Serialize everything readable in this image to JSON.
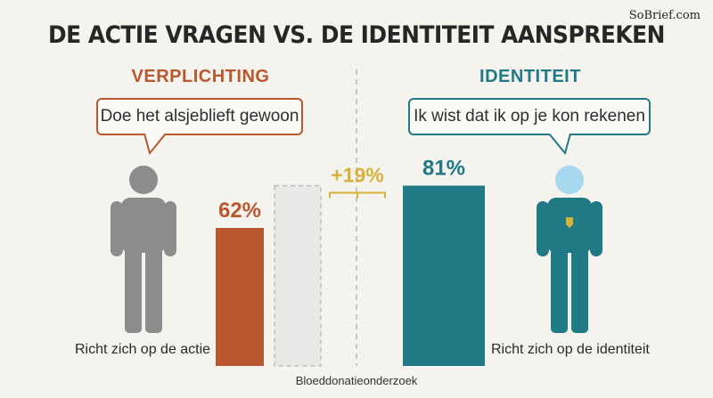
{
  "watermark": "SoBrief.com",
  "title": "DE ACTIE VRAGEN VS. DE IDENTITEIT AANSPREKEN",
  "source": "Bloeddonatieonderzoek",
  "colors": {
    "left": "#b9572f",
    "right": "#1f7a86",
    "accent": "#d8b13a",
    "gray": "#8c8c8c"
  },
  "left": {
    "heading": "VERPLICHTING",
    "bubble": "Doe het alsjeblieft gewoon",
    "caption": "Richt zich op de actie"
  },
  "right": {
    "heading": "IDENTITEIT",
    "bubble": "Ik wist dat ik op je kon rekenen",
    "caption": "Richt zich op de identiteit"
  },
  "chart_data": {
    "type": "bar",
    "categories": [
      "VERPLICHTING",
      "IDENTITEIT"
    ],
    "values": [
      62,
      81
    ],
    "value_labels": [
      "62%",
      "81%"
    ],
    "difference_label": "+19%",
    "ylim": [
      0,
      100
    ]
  }
}
